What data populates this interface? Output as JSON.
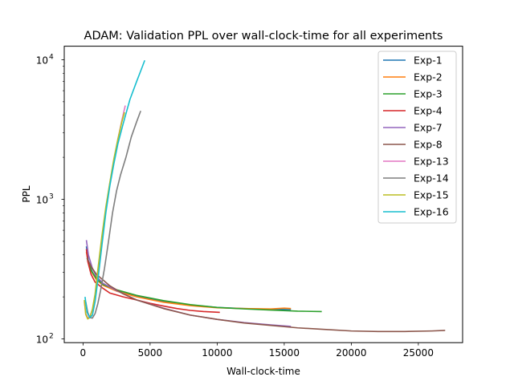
{
  "chart_data": {
    "type": "line",
    "title": "ADAM: Validation PPL over wall-clock-time for all experiments",
    "xlabel": "Wall-clock-time",
    "ylabel": "PPL",
    "xlim": [
      -1400,
      28300
    ],
    "ylim": [
      94,
      12500
    ],
    "yscale": "log",
    "grid": false,
    "legend_position": "top-right",
    "x_ticks": [
      {
        "value": 0,
        "label": "0"
      },
      {
        "value": 5000,
        "label": "5000"
      },
      {
        "value": 10000,
        "label": "10000"
      },
      {
        "value": 15000,
        "label": "15000"
      },
      {
        "value": 20000,
        "label": "20000"
      },
      {
        "value": 25000,
        "label": "25000"
      }
    ],
    "y_ticks": [
      {
        "value": 100,
        "base": "10",
        "exp": "2"
      },
      {
        "value": 1000,
        "base": "10",
        "exp": "3"
      },
      {
        "value": 10000,
        "base": "10",
        "exp": "4"
      }
    ],
    "series": [
      {
        "name": "Exp-1",
        "color": "#1f77b4",
        "points": [
          [
            250,
            460
          ],
          [
            400,
            360
          ],
          [
            700,
            300
          ],
          [
            1000,
            270
          ],
          [
            1500,
            245
          ],
          [
            2500,
            222
          ],
          [
            4000,
            203
          ],
          [
            6000,
            185
          ],
          [
            8000,
            175
          ],
          [
            10000,
            168
          ],
          [
            12000,
            165
          ],
          [
            14000,
            163
          ],
          [
            15500,
            162
          ]
        ]
      },
      {
        "name": "Exp-2",
        "color": "#ff7f0e",
        "points": [
          [
            250,
            420
          ],
          [
            400,
            350
          ],
          [
            700,
            295
          ],
          [
            1000,
            265
          ],
          [
            1500,
            242
          ],
          [
            2500,
            220
          ],
          [
            4000,
            200
          ],
          [
            6000,
            183
          ],
          [
            8000,
            173
          ],
          [
            10000,
            167
          ],
          [
            12000,
            165
          ],
          [
            14000,
            164
          ],
          [
            15000,
            166
          ],
          [
            15500,
            165
          ]
        ]
      },
      {
        "name": "Exp-3",
        "color": "#2ca02c",
        "points": [
          [
            300,
            380
          ],
          [
            600,
            310
          ],
          [
            1000,
            270
          ],
          [
            1500,
            245
          ],
          [
            2500,
            225
          ],
          [
            4000,
            205
          ],
          [
            6000,
            188
          ],
          [
            8000,
            176
          ],
          [
            10000,
            168
          ],
          [
            12000,
            164
          ],
          [
            14000,
            161
          ],
          [
            16000,
            158
          ],
          [
            17800,
            157
          ]
        ]
      },
      {
        "name": "Exp-4",
        "color": "#d62728",
        "points": [
          [
            250,
            440
          ],
          [
            350,
            360
          ],
          [
            600,
            290
          ],
          [
            900,
            255
          ],
          [
            1500,
            230
          ],
          [
            2000,
            213
          ],
          [
            3000,
            200
          ],
          [
            4000,
            190
          ],
          [
            5000,
            180
          ],
          [
            6000,
            172
          ],
          [
            7000,
            165
          ],
          [
            8000,
            160
          ],
          [
            9000,
            157
          ],
          [
            10200,
            155
          ]
        ]
      },
      {
        "name": "Exp-7",
        "color": "#9467bd",
        "points": [
          [
            250,
            510
          ],
          [
            400,
            400
          ],
          [
            700,
            320
          ],
          [
            1000,
            280
          ],
          [
            1500,
            250
          ],
          [
            2500,
            222
          ],
          [
            4000,
            190
          ],
          [
            6000,
            166
          ],
          [
            8000,
            148
          ],
          [
            10000,
            138
          ],
          [
            12000,
            131
          ],
          [
            14000,
            126
          ],
          [
            15500,
            123
          ]
        ]
      },
      {
        "name": "Exp-8",
        "color": "#8c564b",
        "points": [
          [
            300,
            380
          ],
          [
            600,
            330
          ],
          [
            1000,
            290
          ],
          [
            2000,
            240
          ],
          [
            3000,
            210
          ],
          [
            4000,
            190
          ],
          [
            6000,
            165
          ],
          [
            8000,
            148
          ],
          [
            10000,
            138
          ],
          [
            12000,
            130
          ],
          [
            14000,
            125
          ],
          [
            16000,
            120
          ],
          [
            18000,
            117
          ],
          [
            20000,
            114
          ],
          [
            22000,
            113
          ],
          [
            24000,
            113
          ],
          [
            26000,
            114
          ],
          [
            27000,
            115
          ]
        ]
      },
      {
        "name": "Exp-13",
        "color": "#e377c2",
        "points": [
          [
            100,
            185
          ],
          [
            200,
            152
          ],
          [
            350,
            142
          ],
          [
            500,
            143
          ],
          [
            700,
            162
          ],
          [
            900,
            205
          ],
          [
            1100,
            300
          ],
          [
            1400,
            520
          ],
          [
            1700,
            850
          ],
          [
            2000,
            1300
          ],
          [
            2300,
            1900
          ],
          [
            2600,
            2700
          ],
          [
            2900,
            3700
          ],
          [
            3150,
            4700
          ]
        ]
      },
      {
        "name": "Exp-14",
        "color": "#7f7f7f",
        "points": [
          [
            200,
            185
          ],
          [
            350,
            155
          ],
          [
            500,
            142
          ],
          [
            700,
            141
          ],
          [
            900,
            152
          ],
          [
            1100,
            178
          ],
          [
            1300,
            220
          ],
          [
            1600,
            320
          ],
          [
            1900,
            500
          ],
          [
            2200,
            800
          ],
          [
            2500,
            1150
          ],
          [
            2800,
            1500
          ],
          [
            3200,
            2000
          ],
          [
            3600,
            2800
          ],
          [
            4000,
            3600
          ],
          [
            4300,
            4300
          ]
        ]
      },
      {
        "name": "Exp-15",
        "color": "#bcbd22",
        "points": [
          [
            100,
            190
          ],
          [
            200,
            150
          ],
          [
            350,
            139
          ],
          [
            500,
            142
          ],
          [
            700,
            163
          ],
          [
            900,
            210
          ],
          [
            1100,
            310
          ],
          [
            1400,
            540
          ],
          [
            1700,
            880
          ],
          [
            2000,
            1320
          ],
          [
            2300,
            1950
          ],
          [
            2600,
            2700
          ],
          [
            2900,
            3600
          ],
          [
            3100,
            4200
          ]
        ]
      },
      {
        "name": "Exp-16",
        "color": "#17becf",
        "points": [
          [
            150,
            200
          ],
          [
            300,
            155
          ],
          [
            500,
            142
          ],
          [
            700,
            148
          ],
          [
            900,
            185
          ],
          [
            1100,
            260
          ],
          [
            1400,
            460
          ],
          [
            1700,
            800
          ],
          [
            2000,
            1250
          ],
          [
            2300,
            1800
          ],
          [
            2600,
            2500
          ],
          [
            3000,
            3500
          ],
          [
            3500,
            5200
          ],
          [
            4000,
            7000
          ],
          [
            4400,
            8800
          ],
          [
            4600,
            9900
          ]
        ]
      }
    ]
  }
}
